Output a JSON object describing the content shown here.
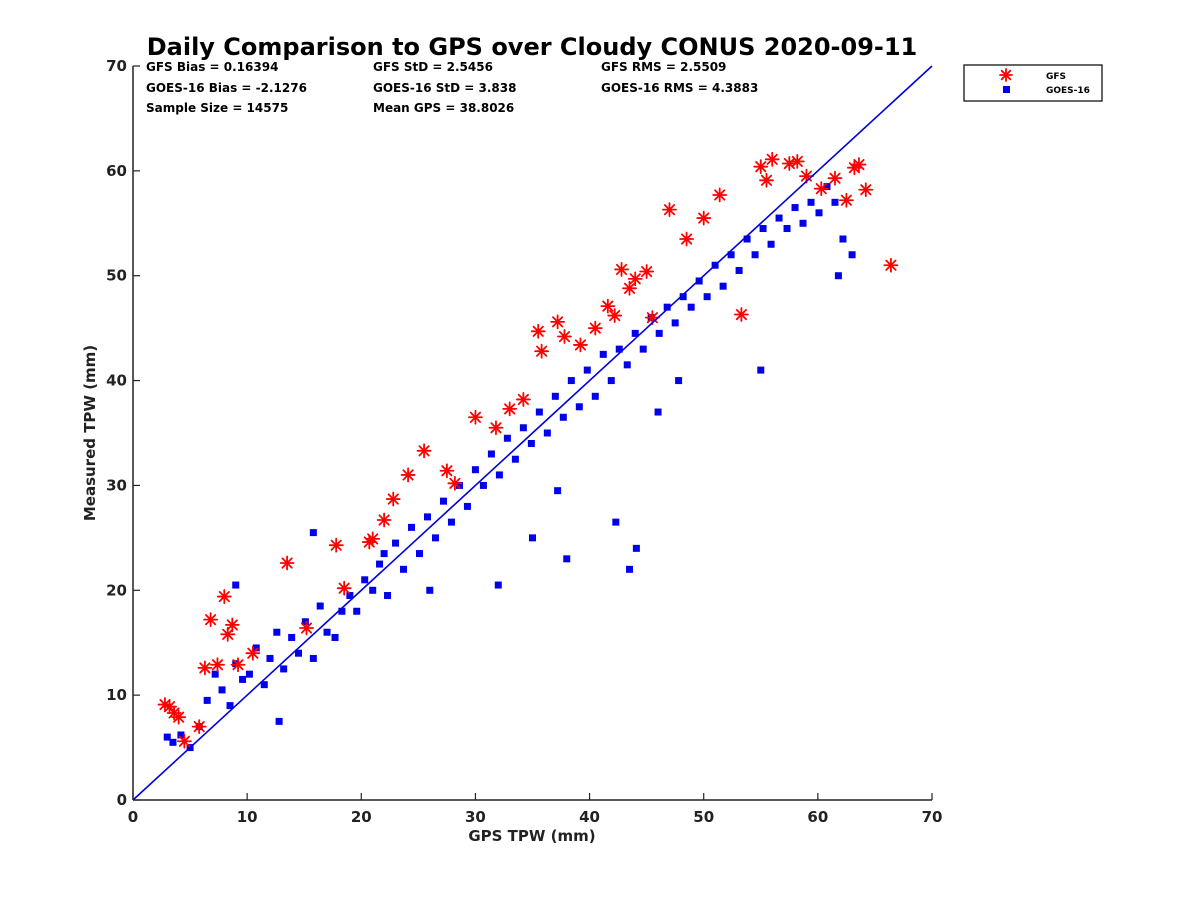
{
  "chart_data": {
    "type": "scatter",
    "title": "Daily Comparison to GPS over Cloudy CONUS 2020-09-11",
    "xlabel": "GPS TPW (mm)",
    "ylabel": "Measured TPW (mm)",
    "xlim": [
      0,
      70
    ],
    "ylim": [
      0,
      70
    ],
    "xticks": [
      "0",
      "10",
      "20",
      "30",
      "40",
      "50",
      "60",
      "70"
    ],
    "yticks": [
      "0",
      "10",
      "20",
      "30",
      "40",
      "50",
      "60",
      "70"
    ],
    "grid": false,
    "legend_position": "outside-top-right",
    "stats": [
      [
        "GFS Bias = 0.16394",
        "GFS StD = 2.5456",
        "GFS RMS = 2.5509"
      ],
      [
        "GOES-16 Bias = -2.1276",
        "GOES-16 StD = 3.838",
        "GOES-16 RMS = 4.3883"
      ],
      [
        "Sample Size = 14575",
        "Mean GPS = 38.8026",
        ""
      ]
    ],
    "reference_line": {
      "type": "one-to-one",
      "x": [
        0,
        70
      ],
      "y": [
        0,
        70
      ],
      "color": "#0000dd"
    },
    "series": [
      {
        "name": "GFS",
        "marker": "asterisk",
        "color": "#ff0000",
        "x": [
          2.8,
          3.2,
          3.6,
          4.0,
          4.5,
          5.8,
          6.3,
          6.8,
          7.4,
          8.0,
          8.3,
          8.7,
          9.2,
          10.5,
          13.5,
          15.2,
          17.8,
          18.5,
          20.7,
          21.0,
          22.0,
          22.8,
          24.1,
          25.5,
          27.5,
          28.2,
          30.0,
          31.8,
          33.0,
          34.2,
          35.5,
          35.8,
          37.2,
          37.8,
          39.2,
          40.5,
          41.6,
          42.2,
          42.8,
          43.5,
          44.0,
          45.0,
          45.5,
          47.0,
          48.5,
          50.0,
          51.4,
          53.3,
          55.0,
          55.5,
          56.0,
          57.5,
          58.2,
          59.0,
          60.3,
          61.5,
          62.5,
          63.2,
          63.6,
          64.2,
          66.4
        ],
        "y": [
          9.1,
          8.9,
          8.3,
          7.9,
          5.6,
          7.0,
          12.6,
          17.2,
          12.9,
          19.4,
          15.8,
          16.7,
          12.9,
          14.0,
          22.6,
          16.4,
          24.3,
          20.2,
          24.6,
          24.9,
          26.7,
          28.7,
          31.0,
          33.3,
          31.4,
          30.2,
          36.5,
          35.5,
          37.3,
          38.2,
          44.7,
          42.8,
          45.6,
          44.2,
          43.4,
          45.0,
          47.1,
          46.2,
          50.6,
          48.8,
          49.7,
          50.4,
          46.0,
          56.3,
          53.5,
          55.5,
          57.7,
          46.3,
          60.4,
          59.1,
          61.1,
          60.7,
          60.9,
          59.5,
          58.3,
          59.3,
          57.2,
          60.3,
          60.6,
          58.2,
          51.0
        ]
      },
      {
        "name": "GOES-16",
        "marker": "square",
        "color": "#0000ee",
        "x": [
          3.0,
          3.5,
          4.2,
          5.0,
          5.8,
          6.5,
          7.2,
          7.8,
          8.5,
          9.0,
          9.6,
          10.2,
          10.8,
          11.5,
          12.0,
          12.6,
          13.2,
          13.9,
          14.5,
          15.1,
          15.8,
          16.4,
          17.0,
          17.7,
          18.3,
          19.0,
          19.6,
          20.3,
          21.0,
          21.6,
          22.3,
          23.0,
          23.7,
          24.4,
          25.1,
          25.8,
          26.5,
          27.2,
          27.9,
          28.6,
          29.3,
          30.0,
          30.7,
          31.4,
          32.1,
          32.8,
          33.5,
          34.2,
          34.9,
          35.6,
          36.3,
          37.0,
          37.7,
          38.4,
          39.1,
          39.8,
          40.5,
          41.2,
          41.9,
          42.6,
          43.3,
          44.0,
          44.7,
          45.4,
          46.1,
          46.8,
          47.5,
          48.2,
          48.9,
          49.6,
          50.3,
          51.0,
          51.7,
          52.4,
          53.1,
          53.8,
          54.5,
          55.2,
          55.9,
          56.6,
          57.3,
          58.0,
          58.7,
          59.4,
          60.1,
          60.8,
          61.5,
          62.2,
          63.0,
          43.5,
          44.1,
          42.3,
          38.0,
          37.2,
          32.0,
          35.0,
          26.0,
          22.0,
          61.8,
          55.0,
          46.0,
          47.8,
          12.8,
          9.0,
          15.8
        ],
        "y": [
          6.0,
          5.5,
          6.2,
          5.0,
          7.0,
          9.5,
          12.0,
          10.5,
          9.0,
          13.0,
          11.5,
          12.0,
          14.5,
          11.0,
          13.5,
          16.0,
          12.5,
          15.5,
          14.0,
          17.0,
          13.5,
          18.5,
          16.0,
          15.5,
          18.0,
          19.5,
          18.0,
          21.0,
          20.0,
          22.5,
          19.5,
          24.5,
          22.0,
          26.0,
          23.5,
          27.0,
          25.0,
          28.5,
          26.5,
          30.0,
          28.0,
          31.5,
          30.0,
          33.0,
          31.0,
          34.5,
          32.5,
          35.5,
          34.0,
          37.0,
          35.0,
          38.5,
          36.5,
          40.0,
          37.5,
          41.0,
          38.5,
          42.5,
          40.0,
          43.0,
          41.5,
          44.5,
          43.0,
          46.0,
          44.5,
          47.0,
          45.5,
          48.0,
          47.0,
          49.5,
          48.0,
          51.0,
          49.0,
          52.0,
          50.5,
          53.5,
          52.0,
          54.5,
          53.0,
          55.5,
          54.5,
          56.5,
          55.0,
          57.0,
          56.0,
          58.5,
          57.0,
          53.5,
          52.0,
          22.0,
          24.0,
          26.5,
          23.0,
          29.5,
          20.5,
          25.0,
          20.0,
          23.5,
          50.0,
          41.0,
          37.0,
          40.0,
          7.5,
          20.5,
          25.5
        ]
      }
    ]
  }
}
